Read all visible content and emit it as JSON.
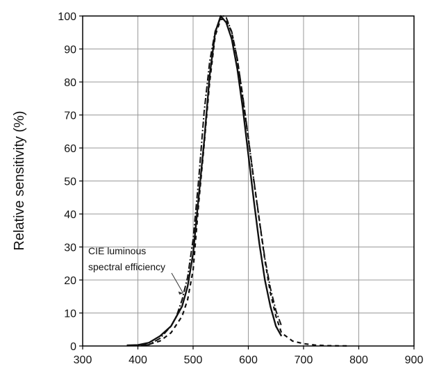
{
  "chart_data": {
    "type": "line",
    "title": "",
    "xlabel": "",
    "ylabel": "Relative sensitivity (%)",
    "xlim": [
      300,
      900
    ],
    "ylim": [
      0,
      100
    ],
    "x_ticks": [
      300,
      400,
      500,
      600,
      700,
      800,
      900
    ],
    "y_ticks": [
      0,
      10,
      20,
      30,
      40,
      50,
      60,
      70,
      80,
      90,
      100
    ],
    "grid": true,
    "colors": {
      "line": "#111111",
      "grid": "#999999",
      "axis": "#000000"
    },
    "series": [
      {
        "name": "",
        "style": "solid",
        "points": [
          [
            380,
            0.2
          ],
          [
            400,
            0.3
          ],
          [
            420,
            1
          ],
          [
            440,
            3
          ],
          [
            460,
            6
          ],
          [
            480,
            12
          ],
          [
            490,
            18
          ],
          [
            500,
            28
          ],
          [
            510,
            45
          ],
          [
            520,
            62
          ],
          [
            530,
            82
          ],
          [
            540,
            95
          ],
          [
            550,
            100
          ],
          [
            560,
            98
          ],
          [
            570,
            93
          ],
          [
            580,
            84
          ],
          [
            590,
            72
          ],
          [
            600,
            58
          ],
          [
            610,
            44
          ],
          [
            620,
            31
          ],
          [
            630,
            20
          ],
          [
            640,
            12
          ],
          [
            650,
            6
          ],
          [
            660,
            3
          ]
        ]
      },
      {
        "name": "",
        "style": "dash",
        "points": [
          [
            380,
            0.1
          ],
          [
            400,
            0.2
          ],
          [
            420,
            0.5
          ],
          [
            440,
            1.5
          ],
          [
            460,
            4
          ],
          [
            480,
            9
          ],
          [
            490,
            14
          ],
          [
            500,
            23
          ],
          [
            510,
            43
          ],
          [
            520,
            61
          ],
          [
            530,
            80
          ],
          [
            540,
            94
          ],
          [
            550,
            99
          ],
          [
            560,
            99
          ],
          [
            570,
            95
          ],
          [
            580,
            87
          ],
          [
            590,
            75
          ],
          [
            600,
            63
          ],
          [
            610,
            50
          ],
          [
            620,
            38
          ],
          [
            630,
            26
          ],
          [
            640,
            16
          ],
          [
            650,
            9
          ],
          [
            660,
            4
          ],
          [
            680,
            1.5
          ],
          [
            700,
            0.7
          ],
          [
            720,
            0.3
          ],
          [
            740,
            0.1
          ],
          [
            760,
            0.05
          ],
          [
            780,
            0.02
          ]
        ]
      },
      {
        "name": "CIE luminous spectral efficiency",
        "style": "dashdot",
        "points": [
          [
            390,
            0.1
          ],
          [
            400,
            0.1
          ],
          [
            420,
            0.4
          ],
          [
            440,
            2.3
          ],
          [
            460,
            6
          ],
          [
            470,
            9.1
          ],
          [
            480,
            14
          ],
          [
            490,
            20.8
          ],
          [
            500,
            32.3
          ],
          [
            510,
            50.3
          ],
          [
            520,
            71
          ],
          [
            530,
            86.2
          ],
          [
            540,
            95.4
          ],
          [
            550,
            99.5
          ],
          [
            555,
            100
          ],
          [
            560,
            99.5
          ],
          [
            570,
            95.2
          ],
          [
            580,
            87
          ],
          [
            590,
            75.7
          ],
          [
            600,
            63.1
          ],
          [
            610,
            50.3
          ],
          [
            620,
            38.1
          ],
          [
            630,
            26.5
          ],
          [
            640,
            17.5
          ],
          [
            650,
            10.7
          ],
          [
            660,
            6.1
          ]
        ]
      }
    ],
    "annotation": {
      "lines": [
        "CIE luminous",
        "spectral efficiency"
      ],
      "arrow_to": [
        482,
        16
      ]
    }
  }
}
